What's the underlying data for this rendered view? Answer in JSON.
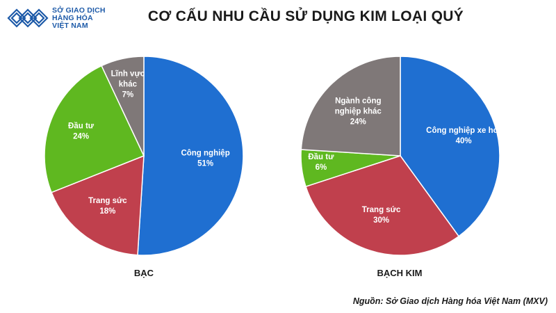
{
  "logo": {
    "line1": "SỞ GIAO DỊCH",
    "line2": "HÀNG HÓA",
    "line3": "VIỆT NAM",
    "color": "#1d5aa8",
    "icon": "mxv-logo-icon"
  },
  "title": "CƠ CẤU NHU CẦU SỬ DỤNG KIM LOẠI QUÝ",
  "source": "Nguồn: Sở Giao dịch Hàng hóa Việt Nam (MXV)",
  "chart_data": [
    {
      "type": "pie",
      "title": "BẠC",
      "start": "12 o'clock",
      "direction": "clockwise",
      "slices": [
        {
          "label": [
            "Công nghiệp"
          ],
          "pct_label": "51%",
          "value": 51,
          "color": "#1f6fd1"
        },
        {
          "label": [
            "Trang sức"
          ],
          "pct_label": "18%",
          "value": 18,
          "color": "#c0404d"
        },
        {
          "label": [
            "Đầu tư"
          ],
          "pct_label": "24%",
          "value": 24,
          "color": "#5fb820"
        },
        {
          "label": [
            "Lĩnh vực",
            "khác"
          ],
          "pct_label": "7%",
          "value": 7,
          "color": "#7f7878"
        }
      ]
    },
    {
      "type": "pie",
      "title": "BẠCH KIM",
      "start": "12 o'clock",
      "direction": "clockwise",
      "slices": [
        {
          "label": [
            "Công nghiệp xe hơi"
          ],
          "pct_label": "40%",
          "value": 40,
          "color": "#1f6fd1"
        },
        {
          "label": [
            "Trang sức"
          ],
          "pct_label": "30%",
          "value": 30,
          "color": "#c0404d"
        },
        {
          "label": [
            "Đầu tư"
          ],
          "pct_label": "6%",
          "value": 6,
          "color": "#5fb820"
        },
        {
          "label": [
            "Ngành công",
            "nghiệp khác"
          ],
          "pct_label": "24%",
          "value": 24,
          "color": "#7f7878"
        }
      ]
    }
  ]
}
